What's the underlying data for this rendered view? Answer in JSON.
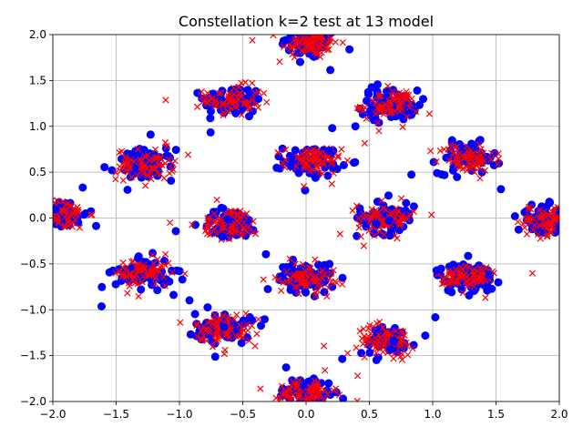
{
  "chart_data": {
    "type": "scatter",
    "title": "Constellation k=2 test at 13 model",
    "xlabel": "",
    "ylabel": "",
    "xlim": [
      -2.0,
      2.0
    ],
    "ylim": [
      -2.0,
      2.0
    ],
    "grid": true,
    "x_ticks": [
      -2.0,
      -1.5,
      -1.0,
      -0.5,
      0.0,
      0.5,
      1.0,
      1.5,
      2.0
    ],
    "y_ticks": [
      -2.0,
      -1.5,
      -1.0,
      -0.5,
      0.0,
      0.5,
      1.0,
      1.5,
      2.0
    ],
    "x_tick_labels": [
      "−2.0",
      "−1.5",
      "−1.0",
      "−0.5",
      "0.0",
      "0.5",
      "1.0",
      "1.5",
      "2.0"
    ],
    "y_tick_labels": [
      "−2.0",
      "−1.5",
      "−1.0",
      "−0.5",
      "0.0",
      "0.5",
      "1.0",
      "1.5",
      "2.0"
    ],
    "cluster_spread": [
      0.15,
      0.15
    ],
    "points_per_cluster": 70,
    "cluster_centers": [
      [
        0.03,
        1.9
      ],
      [
        -0.58,
        1.28
      ],
      [
        0.66,
        1.23
      ],
      [
        -1.27,
        0.58
      ],
      [
        0.05,
        0.62
      ],
      [
        1.27,
        0.65
      ],
      [
        -1.95,
        0.05
      ],
      [
        -0.6,
        -0.06
      ],
      [
        0.63,
        0.0
      ],
      [
        1.9,
        -0.03
      ],
      [
        -1.28,
        -0.6
      ],
      [
        0.0,
        -0.65
      ],
      [
        1.27,
        -0.65
      ],
      [
        -0.65,
        -1.2
      ],
      [
        0.63,
        -1.33
      ],
      [
        0.0,
        -1.9
      ]
    ],
    "series": [
      {
        "marker": "circle",
        "color": "#0000ff"
      },
      {
        "marker": "x",
        "color": "#ff0000"
      }
    ]
  }
}
